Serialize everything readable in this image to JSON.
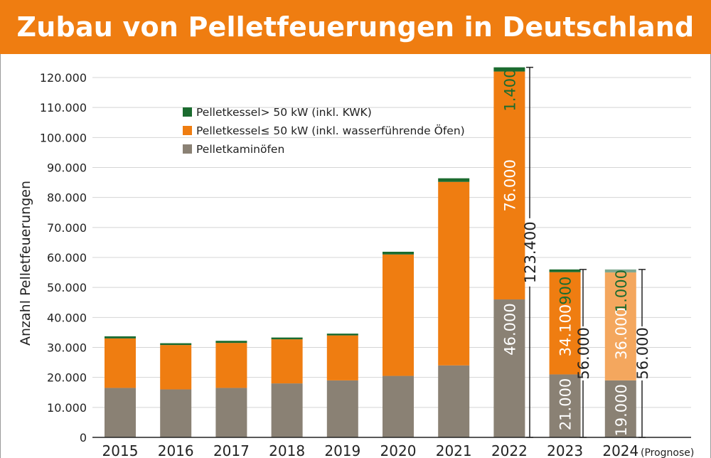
{
  "title": "Zubau von Pelletfeuerungen in Deutschland",
  "colors": {
    "brand": "#ef7d11",
    "kaminoefen": "#8a8174",
    "kessel_small": "#ef7d11",
    "kessel_small_forecast": "#f4a75e",
    "kessel_large": "#1b6b2f"
  },
  "chart_data": {
    "type": "bar",
    "stacked": true,
    "ylabel": "Anzahl Pelletfeuerungen",
    "ylim": [
      0,
      120000
    ],
    "yticks": [
      "0",
      "10.000",
      "20.000",
      "30.000",
      "40.000",
      "50.000",
      "60.000",
      "70.000",
      "80.000",
      "90.000",
      "100.000",
      "110.000",
      "120.000"
    ],
    "categories": [
      "2015",
      "2016",
      "2017",
      "2018",
      "2019",
      "2020",
      "2021",
      "2022",
      "2023",
      "2024"
    ],
    "forecast_note": "(Prognose)",
    "legend_position": "top-left",
    "series": [
      {
        "name": "Pelletkaminöfen",
        "values": [
          16500,
          16000,
          16500,
          18000,
          19000,
          20500,
          24000,
          46000,
          21000,
          19000
        ]
      },
      {
        "name": "Pelletkessel≤ 50 kW (inkl. wasserführende Öfen)",
        "values": [
          16500,
          14800,
          15000,
          14700,
          15000,
          40500,
          61200,
          76000,
          34100,
          36000
        ]
      },
      {
        "name": "Pelletkessel> 50 kW (inkl. KWK)",
        "values": [
          700,
          600,
          700,
          600,
          600,
          900,
          1200,
          1400,
          900,
          1000
        ]
      }
    ],
    "legend_order": [
      2,
      1,
      0
    ],
    "data_labels": {
      "2022": [
        "46.000",
        "76.000",
        "1.400"
      ],
      "2023": [
        "21.000",
        "34.100",
        "900"
      ],
      "2024": [
        "19.000",
        "36.000",
        "1.000"
      ]
    },
    "totals": [
      {
        "category": "2022",
        "value": 123400,
        "label": "123.400"
      },
      {
        "category": "2023",
        "value": 56000,
        "label": "56.000"
      },
      {
        "category": "2024",
        "value": 56000,
        "label": "56.000"
      }
    ]
  }
}
